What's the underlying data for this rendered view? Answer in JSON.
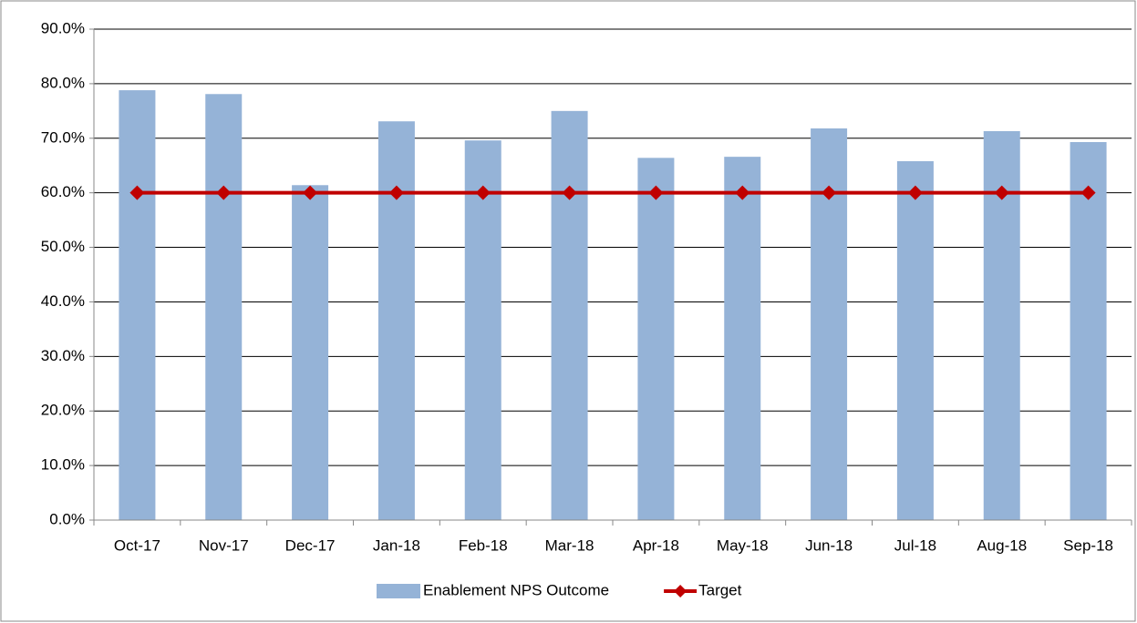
{
  "chart_data": {
    "type": "bar",
    "categories": [
      "Oct-17",
      "Nov-17",
      "Dec-17",
      "Jan-18",
      "Feb-18",
      "Mar-18",
      "Apr-18",
      "May-18",
      "Jun-18",
      "Jul-18",
      "Aug-18",
      "Sep-18"
    ],
    "series": [
      {
        "name": "Enablement NPS Outcome",
        "type": "bar",
        "color": "#95b3d7",
        "values": [
          78.8,
          78.1,
          61.4,
          73.1,
          69.6,
          75.0,
          66.4,
          66.6,
          71.8,
          65.8,
          71.3,
          69.3
        ]
      },
      {
        "name": "Target",
        "type": "line",
        "color": "#c00000",
        "values": [
          60,
          60,
          60,
          60,
          60,
          60,
          60,
          60,
          60,
          60,
          60,
          60
        ]
      }
    ],
    "ylim": [
      0,
      90
    ],
    "yticks": [
      {
        "value": 0,
        "label": "0.0%"
      },
      {
        "value": 10,
        "label": "10.0%"
      },
      {
        "value": 20,
        "label": "20.0%"
      },
      {
        "value": 30,
        "label": "30.0%"
      },
      {
        "value": 40,
        "label": "40.0%"
      },
      {
        "value": 50,
        "label": "50.0%"
      },
      {
        "value": 60,
        "label": "60.0%"
      },
      {
        "value": 70,
        "label": "70.0%"
      },
      {
        "value": 80,
        "label": "80.0%"
      },
      {
        "value": 90,
        "label": "90.0%"
      }
    ],
    "grid": true,
    "legend": "bottom"
  }
}
